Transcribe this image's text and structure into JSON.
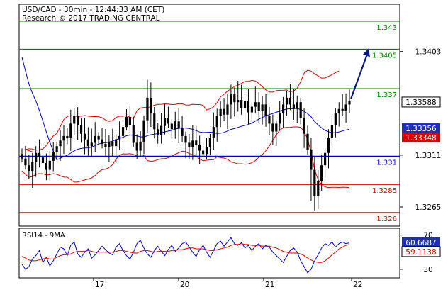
{
  "header": {
    "line1": "USD/CAD - 30min - 12:44:33 AM (CET)",
    "line2": "Research © 2017 TRADING CENTRAL"
  },
  "colors": {
    "resistance": "#008000",
    "pivot": "#0000c8",
    "support": "#e00000",
    "bollinger": "#e00000",
    "moving_average": "#0000c8",
    "price": "#000000",
    "rsi": "#0000c8",
    "rsi_ma": "#e00000",
    "arrow": "#0a1a7a"
  },
  "chart_data": [
    {
      "type": "candlestick",
      "title": "USD/CAD - 30min",
      "y_range": [
        1.3248,
        1.3445
      ],
      "y_ticks": [
        1.3403,
        1.3311,
        1.3265
      ],
      "x_ticks": [
        "17",
        "20",
        "21",
        "22"
      ],
      "levels": [
        {
          "value": 1.343,
          "label": "1.343",
          "kind": "resistance"
        },
        {
          "value": 1.3405,
          "label": "1.3405",
          "kind": "resistance"
        },
        {
          "value": 1.337,
          "label": "1.337",
          "kind": "resistance"
        },
        {
          "value": 1.331,
          "label": "1.331",
          "kind": "pivot"
        },
        {
          "value": 1.3285,
          "label": "1.3285",
          "kind": "support"
        },
        {
          "value": 1.326,
          "label": "1.326",
          "kind": "support"
        }
      ],
      "last_price": {
        "value": 1.33588,
        "label": "1.33588"
      },
      "ma_value": {
        "value": 1.33356,
        "label": "1.33356"
      },
      "boll_value": {
        "value": 1.33348,
        "label": "1.33348"
      },
      "forecast_target": 1.3405,
      "close_series": [
        1.3308,
        1.3302,
        1.3297,
        1.3305,
        1.3313,
        1.3309,
        1.3304,
        1.3298,
        1.3306,
        1.3314,
        1.3319,
        1.3324,
        1.3328,
        1.3326,
        1.3339,
        1.3346,
        1.3338,
        1.333,
        1.3325,
        1.3319,
        1.3322,
        1.3328,
        1.3325,
        1.3321,
        1.3318,
        1.3323,
        1.3319,
        1.3325,
        1.3328,
        1.3336,
        1.3345,
        1.3338,
        1.3322,
        1.3315,
        1.3323,
        1.3342,
        1.3362,
        1.3348,
        1.3334,
        1.3329,
        1.3337,
        1.3344,
        1.3339,
        1.3334,
        1.3341,
        1.3335,
        1.3328,
        1.3322,
        1.3318,
        1.3324,
        1.332,
        1.3315,
        1.3312,
        1.3318,
        1.3326,
        1.3336,
        1.3346,
        1.3352,
        1.3347,
        1.3356,
        1.3365,
        1.3358,
        1.336,
        1.3353,
        1.3359,
        1.3349,
        1.3354,
        1.3358,
        1.335,
        1.3356,
        1.3346,
        1.3339,
        1.3332,
        1.3339,
        1.3348,
        1.3356,
        1.3362,
        1.3356,
        1.3352,
        1.3358,
        1.3344,
        1.333,
        1.3316,
        1.3298,
        1.3275,
        1.3288,
        1.3302,
        1.3313,
        1.3326,
        1.3338,
        1.3348,
        1.3352,
        1.335,
        1.3356,
        1.3359
      ]
    },
    {
      "type": "line",
      "title": "RSI14 - 9MA",
      "y_range": [
        20,
        78
      ],
      "y_ticks": [
        70,
        30
      ],
      "series": [
        {
          "name": "RSI14",
          "last": 60.6687,
          "label": "60.6687",
          "values": [
            36,
            30,
            33,
            42,
            46,
            52,
            38,
            44,
            34,
            40,
            48,
            56,
            54,
            46,
            58,
            62,
            48,
            44,
            50,
            54,
            43,
            47,
            52,
            57,
            53,
            49,
            47,
            56,
            60,
            52,
            46,
            42,
            50,
            60,
            64,
            55,
            48,
            44,
            52,
            57,
            51,
            46,
            53,
            58,
            51,
            55,
            60,
            62,
            56,
            50,
            45,
            53,
            58,
            50,
            44,
            52,
            60,
            63,
            57,
            62,
            67,
            60,
            58,
            61,
            55,
            58,
            52,
            57,
            60,
            54,
            58,
            56,
            50,
            46,
            42,
            38,
            45,
            52,
            55,
            50,
            40,
            33,
            26,
            30,
            40,
            47,
            55,
            60,
            58,
            62,
            56,
            60,
            62,
            60,
            61
          ]
        },
        {
          "name": "9MA",
          "last": 59.1138,
          "label": "59.1138",
          "values": [
            45,
            43,
            41,
            40,
            40,
            41,
            42,
            43,
            42,
            42,
            44,
            46,
            47,
            47,
            48,
            50,
            51,
            51,
            51,
            52,
            51,
            50,
            50,
            50,
            50,
            50,
            50,
            51,
            52,
            52,
            51,
            50,
            49,
            49,
            51,
            52,
            52,
            51,
            50,
            51,
            51,
            51,
            51,
            52,
            52,
            53,
            53,
            54,
            55,
            55,
            54,
            54,
            54,
            53,
            52,
            52,
            53,
            54,
            55,
            56,
            58,
            59,
            59,
            60,
            59,
            59,
            58,
            58,
            58,
            57,
            57,
            57,
            56,
            55,
            53,
            51,
            50,
            49,
            49,
            49,
            48,
            46,
            43,
            41,
            39,
            38,
            38,
            40,
            43,
            47,
            50,
            54,
            56,
            58,
            59
          ]
        }
      ]
    }
  ]
}
